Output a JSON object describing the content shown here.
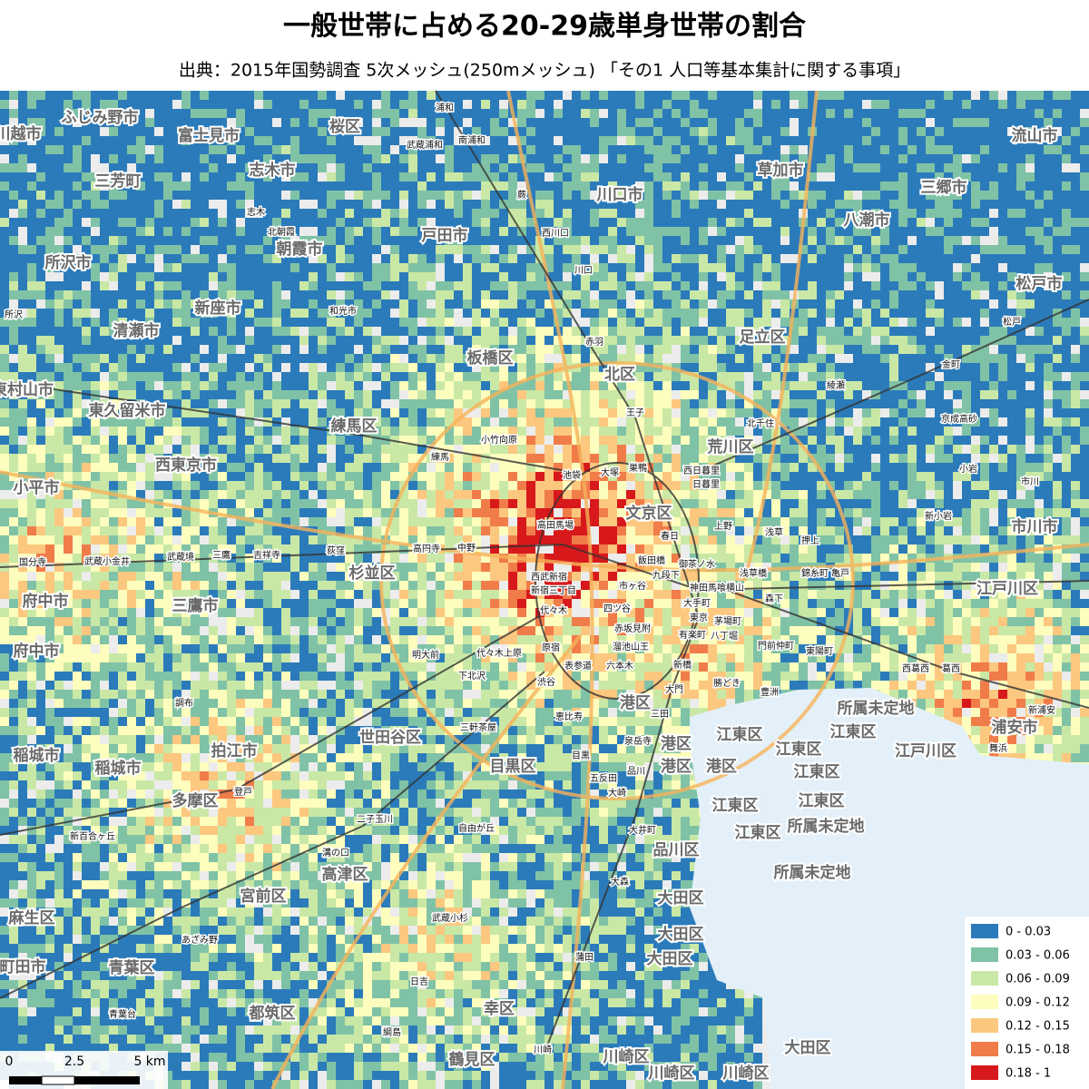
{
  "header": {
    "title": "一般世帯に占める20-29歳単身世帯の割合",
    "subtitle": "出典：2015年国勢調査 5次メッシュ(250mメッシュ) 「その1 人口等基本集計に関する事項」"
  },
  "legend": {
    "items": [
      {
        "label": "0 - 0.03",
        "color": "#2b7bba"
      },
      {
        "label": "0.03 - 0.06",
        "color": "#80c2a6"
      },
      {
        "label": "0.06 - 0.09",
        "color": "#c9e8a6"
      },
      {
        "label": "0.09 - 0.12",
        "color": "#fdfdbd"
      },
      {
        "label": "0.12 - 0.15",
        "color": "#fcc77e"
      },
      {
        "label": "0.15 - 0.18",
        "color": "#f07c4a"
      },
      {
        "label": "0.18 - 1",
        "color": "#d7191c"
      }
    ]
  },
  "scale_bar": {
    "labels": [
      "0",
      "2.5",
      "5 km"
    ]
  },
  "places": [
    "ふじみ野市",
    "富士見市",
    "川越市",
    "桜区",
    "三芳町",
    "志木市",
    "川口市",
    "草加市",
    "流山市",
    "三郷市",
    "戸田市",
    "八潮市",
    "所沢市",
    "朝霞市",
    "松戸市",
    "新座市",
    "清瀬市",
    "足立区",
    "板橋区",
    "北区",
    "東村山市",
    "東久留米市",
    "練馬区",
    "荒川区",
    "西東京市",
    "小平市",
    "文京区",
    "市川市",
    "杉並区",
    "府中市",
    "三鷹市",
    "江戸川区",
    "府中市",
    "港区",
    "所属未定地",
    "浦安市",
    "江東区",
    "江東区",
    "世田谷区",
    "港区",
    "稲城市",
    "拍江市",
    "江東区",
    "江戸川区",
    "目黒区",
    "港区",
    "港区",
    "稲城市",
    "江東区",
    "多摩区",
    "江東区",
    "江東区",
    "江東区",
    "所属未定地",
    "品川区",
    "高津区",
    "所属未定地",
    "宮前区",
    "大田区",
    "麻生区",
    "大田区",
    "大田区",
    "町田市",
    "青葉区",
    "幸区",
    "都筑区",
    "大田区",
    "川崎区",
    "鶴見区",
    "川崎区",
    "川崎区"
  ],
  "stations": [
    "浦和",
    "武蔵浦和",
    "南浦和",
    "蕨",
    "志木",
    "北朝霞",
    "西川口",
    "川口",
    "和光市",
    "所沢",
    "赤羽",
    "金町",
    "松戸",
    "綾瀬",
    "王子",
    "北千住",
    "京成高砂",
    "小竹向原",
    "練馬",
    "池袋",
    "大塚",
    "巣鴨",
    "西日暮里",
    "日暮里",
    "小岩",
    "市川",
    "高田馬場",
    "上野",
    "春日",
    "浅草",
    "押上",
    "新小岩",
    "国分寺",
    "武蔵小金井",
    "武蔵境",
    "三鷹",
    "吉祥寺",
    "荻窪",
    "高円寺",
    "中野",
    "飯田橋",
    "御茶ノ水",
    "錦糸町",
    "亀戸",
    "西武新宿",
    "新宿三丁目",
    "九段下",
    "市ヶ谷",
    "浅草橋",
    "神田馬喰横山",
    "森下",
    "代々木",
    "四ツ谷",
    "大手町",
    "東京",
    "茅場町",
    "赤坂見附",
    "有楽町",
    "八丁堀",
    "明大前",
    "代々木上原",
    "溜池山王",
    "門前仲町",
    "東陽町",
    "原宿",
    "表参道",
    "六本木",
    "新橋",
    "西葛西",
    "葛西",
    "下北沢",
    "渋谷",
    "勝どき",
    "大門",
    "豊洲",
    "調布",
    "新浦安",
    "三軒茶屋",
    "恵比寿",
    "三田",
    "舞浜",
    "泉岳寺",
    "目黒",
    "品川",
    "五反田",
    "大崎",
    "登戸",
    "二子玉川",
    "自由が丘",
    "大井町",
    "新百合ヶ丘",
    "溝の口",
    "大森",
    "武蔵小杉",
    "あざみ野",
    "蒲田",
    "日吉",
    "青葉台",
    "綱島",
    "川崎"
  ]
}
